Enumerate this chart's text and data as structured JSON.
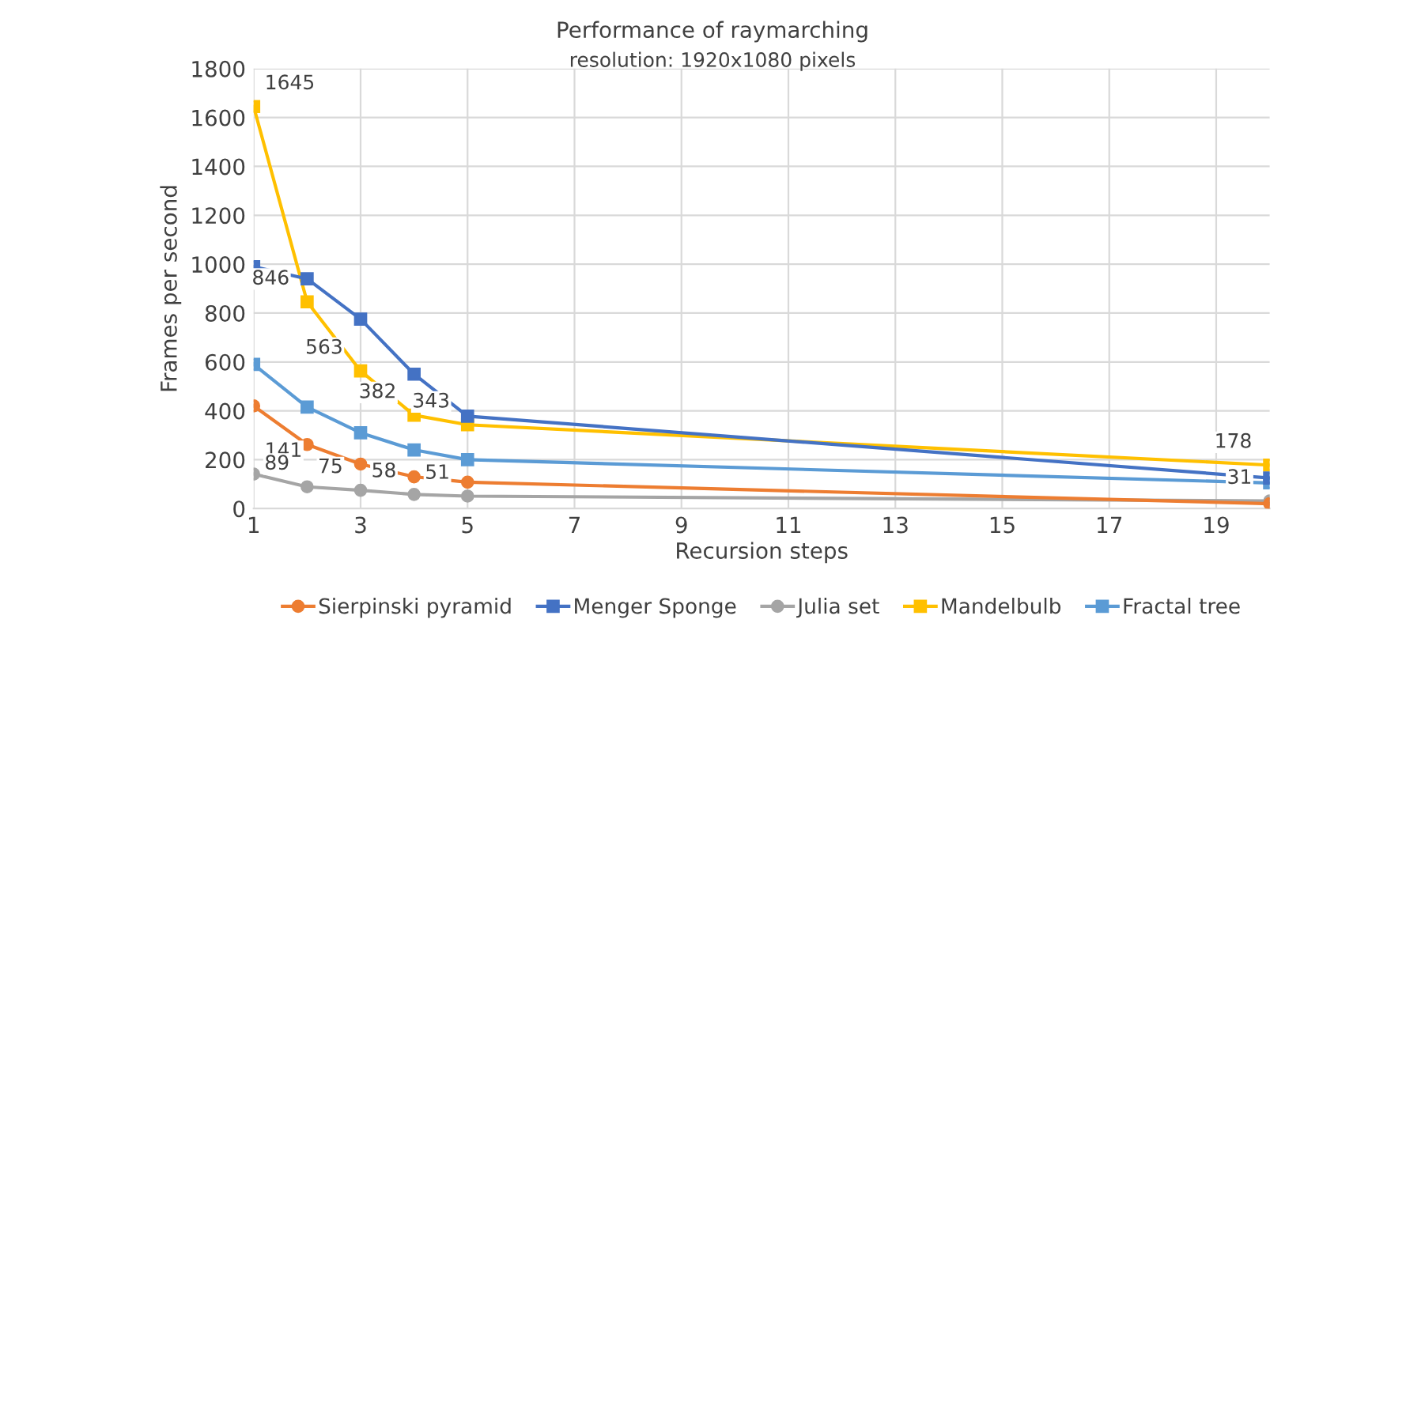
{
  "chart_data": {
    "type": "line",
    "title": "Performance of raymarching",
    "subtitle": "resolution: 1920x1080 pixels",
    "xlabel": "Recursion steps",
    "ylabel": "Frames per second",
    "x": [
      1,
      2,
      3,
      4,
      5,
      20
    ],
    "series": [
      {
        "name": "Sierpinski pyramid",
        "color": "#ed7d31",
        "marker": "circle",
        "values": [
          420,
          262,
          182,
          130,
          108,
          20
        ]
      },
      {
        "name": "Menger Sponge",
        "color": "#4472c4",
        "marker": "square",
        "values": [
          990,
          940,
          775,
          550,
          378,
          125
        ]
      },
      {
        "name": "Julia set",
        "color": "#a5a5a5",
        "marker": "circle",
        "values": [
          141,
          89,
          75,
          58,
          51,
          31
        ],
        "value_labels": [
          "141",
          "89",
          "75",
          "58",
          "51",
          "31"
        ]
      },
      {
        "name": "Mandelbulb",
        "color": "#ffc000",
        "marker": "square",
        "values": [
          1645,
          846,
          563,
          382,
          343,
          178
        ],
        "value_labels": [
          "1645",
          "846",
          "563",
          "382",
          "343",
          "178"
        ]
      },
      {
        "name": "Fractal tree",
        "color": "#5b9bd5",
        "marker": "square",
        "values": [
          590,
          415,
          310,
          240,
          200,
          105
        ]
      }
    ],
    "xlim": [
      1,
      20
    ],
    "xticks": [
      1,
      3,
      5,
      7,
      9,
      11,
      13,
      15,
      17,
      19
    ],
    "ylim": [
      0,
      1800
    ],
    "yticks": [
      0,
      200,
      400,
      600,
      800,
      1000,
      1200,
      1400,
      1600,
      1800
    ],
    "grid": true,
    "legend": "bottom"
  }
}
